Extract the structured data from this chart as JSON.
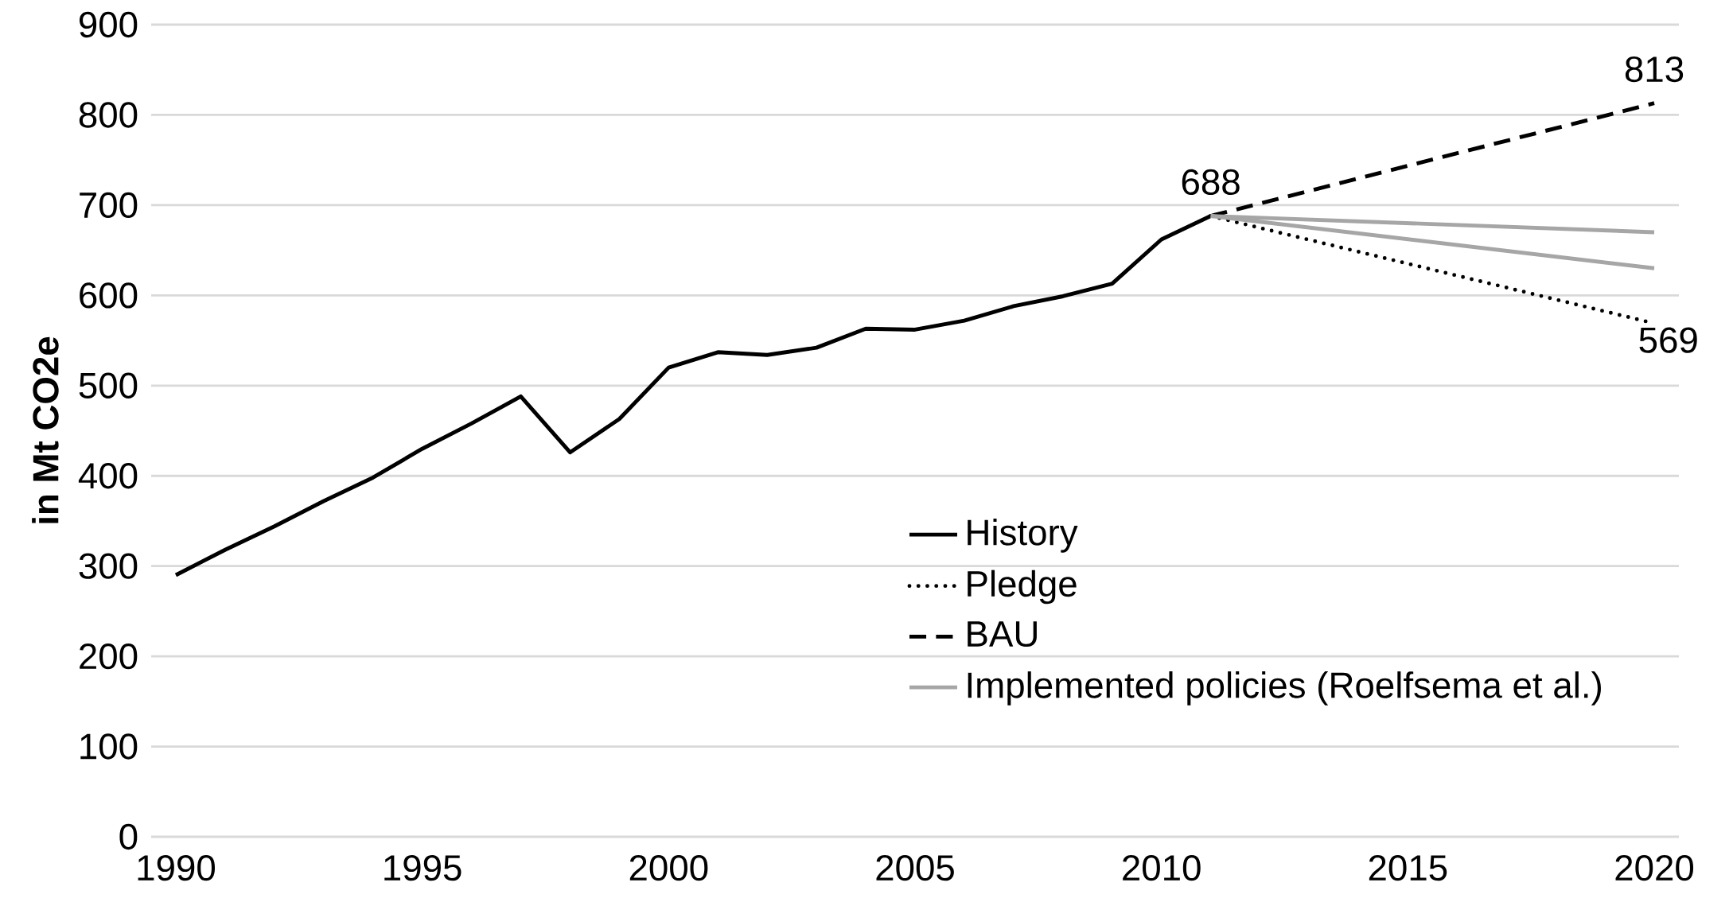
{
  "chart_data": {
    "type": "line",
    "ylabel": "in Mt CO2e",
    "xlim": [
      1989.5,
      2020.5
    ],
    "xticks": [
      1990,
      1995,
      2000,
      2005,
      2010,
      2015,
      2020
    ],
    "ylim": [
      0,
      900
    ],
    "yticks": [
      0,
      100,
      200,
      300,
      400,
      500,
      600,
      700,
      800,
      900
    ],
    "grid": "y",
    "legend": "bottom right",
    "marker": "none",
    "series": [
      {
        "name": "History",
        "color": "#000000",
        "line_style": "solid",
        "x": [
          1990,
          1991,
          1992,
          1993,
          1994,
          1995,
          1996,
          1997,
          1998,
          1999,
          2000,
          2001,
          2002,
          2003,
          2004,
          2005,
          2006,
          2007,
          2008,
          2009,
          2010,
          2011
        ],
        "values": [
          290,
          318,
          344,
          372,
          398,
          430,
          458,
          488,
          426,
          463,
          520,
          537,
          534,
          542,
          563,
          562,
          572,
          588,
          599,
          613,
          662,
          688
        ],
        "value_labels": [
          null,
          null,
          null,
          null,
          null,
          null,
          null,
          null,
          null,
          null,
          null,
          null,
          null,
          null,
          null,
          null,
          null,
          null,
          null,
          null,
          null,
          "688"
        ]
      },
      {
        "name": "Pledge",
        "color": "#000000",
        "line_style": "dotted",
        "x": [
          2011,
          2020
        ],
        "values": [
          688,
          569
        ],
        "value_labels": [
          null,
          "569"
        ]
      },
      {
        "name": "BAU",
        "color": "#000000",
        "line_style": "dashed",
        "x": [
          2011,
          2020
        ],
        "values": [
          688,
          813
        ],
        "value_labels": [
          null,
          "813"
        ]
      },
      {
        "name": "Implemented policies (Roelfsema et al.)",
        "color": "#a6a6a6",
        "line_style": "solid",
        "x": [
          2011,
          2020
        ],
        "values": [
          688,
          670
        ]
      },
      {
        "color": "#a6a6a6",
        "line_style": "solid",
        "x": [
          2011,
          2020
        ],
        "values": [
          688,
          630
        ]
      }
    ]
  }
}
